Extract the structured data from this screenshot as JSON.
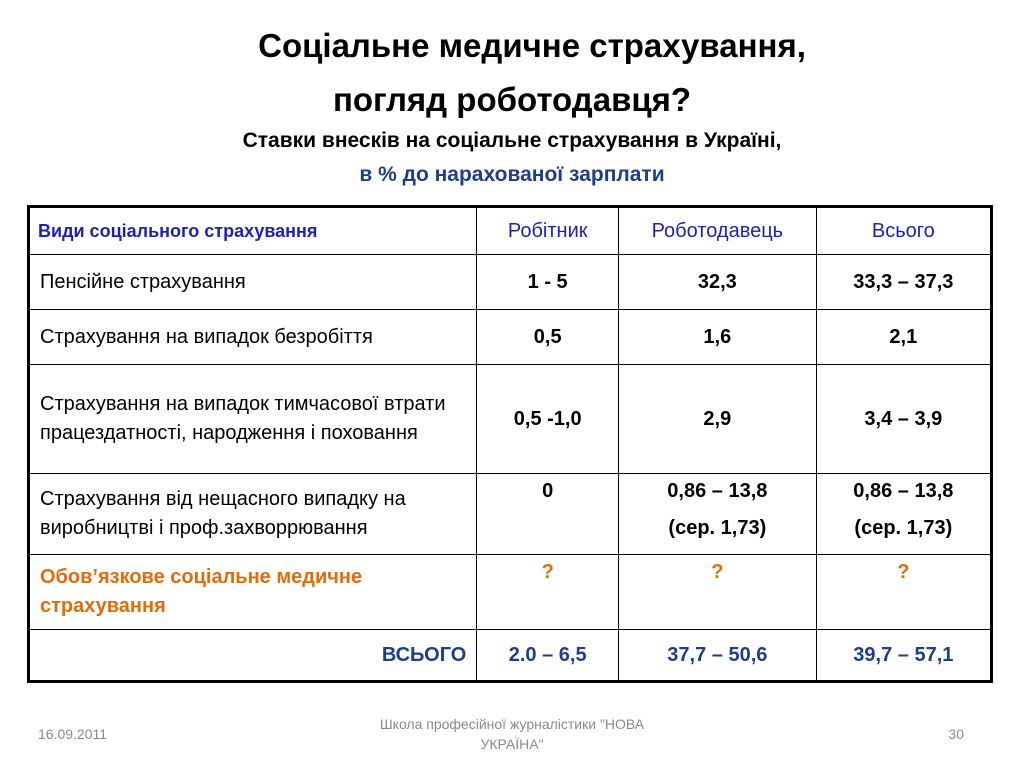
{
  "slide": {
    "title_line1": "Соціальне медичне страхування,",
    "title_line2": "погляд роботодавця?",
    "subtitle_line1": "Ставки внесків на соціальне страхування в Україні,",
    "subtitle_line2": "в % до нарахованої зарплати"
  },
  "table": {
    "headers": [
      "Види соціального страхування",
      "Робітник",
      "Роботодавець",
      "Всього"
    ],
    "rows": [
      {
        "type": "Пенсійне страхування",
        "worker": "1 - 5",
        "employer": "32,3",
        "total": "33,3 – 37,3"
      },
      {
        "type": "Страхування на випадок безробіття",
        "worker": "0,5",
        "employer": "1,6",
        "total": "2,1"
      },
      {
        "type": "Страхування на випадок тимчасової втрати працездатності, народження і поховання",
        "worker": "0,5 -1,0",
        "employer": "2,9",
        "total": "3,4 – 3,9"
      },
      {
        "type": "Страхування від нещасного випадку на виробництві і проф.захворрювання",
        "worker": "0",
        "employer_line1": "0,86 – 13,8",
        "employer_line2": "(сер. 1,73)",
        "total_line1": "0,86 – 13,8",
        "total_line2": "(сер. 1,73)"
      },
      {
        "type": "Обов’язкове соціальне медичне страхування",
        "worker": "?",
        "employer": "?",
        "total": "?"
      }
    ],
    "summary": {
      "label": "ВСЬОГО",
      "worker": "2.0 – 6,5",
      "employer": "37,7 – 50,6",
      "total": "39,7 – 57,1"
    }
  },
  "footer": {
    "date": "16.09.2011",
    "center": "Школа професійної журналістики \"НОВА УКРАЇНА\"",
    "page": "30"
  },
  "colors": {
    "header_text": "#1f1fb8",
    "accent_orange": "#e36c0a",
    "summary_blue": "#1f3d8a"
  }
}
